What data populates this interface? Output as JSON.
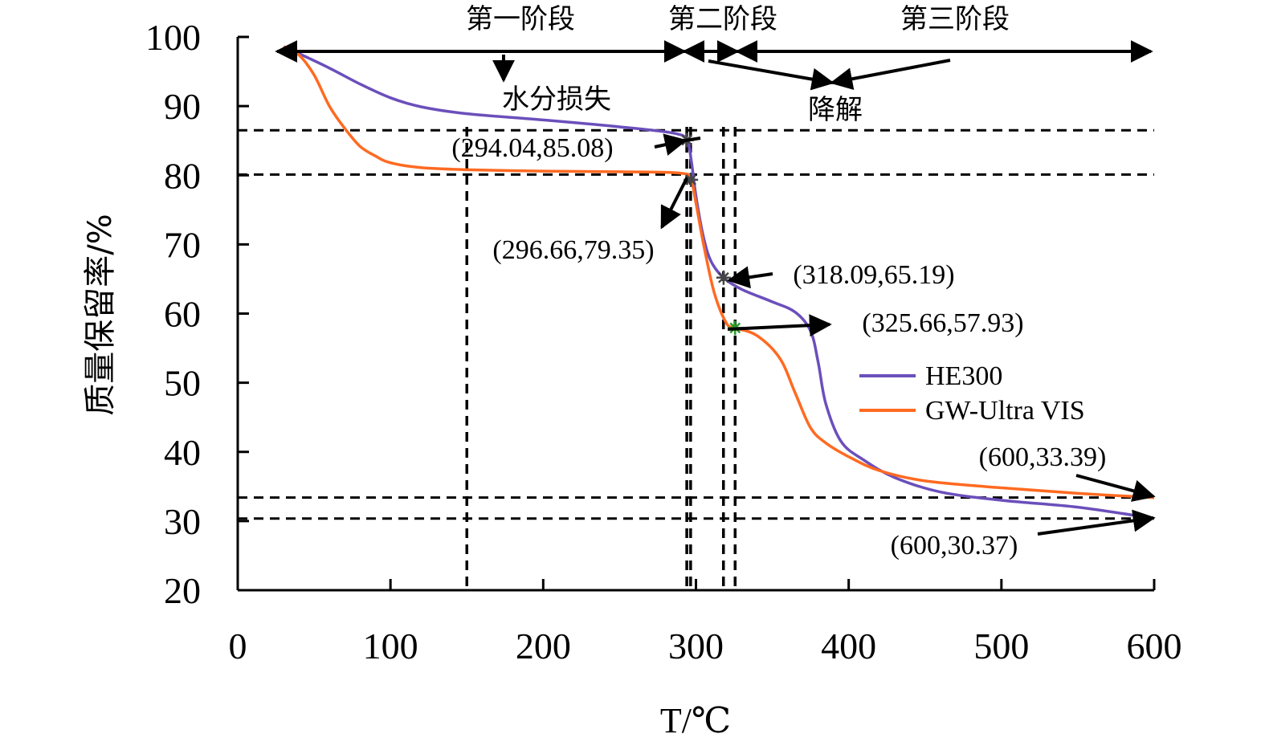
{
  "chart_data": {
    "type": "line",
    "xlabel": "T/℃",
    "ylabel": "质量保留率/%",
    "xlim": [
      0,
      600
    ],
    "ylim": [
      20,
      100
    ],
    "x_ticks": [
      0,
      100,
      200,
      300,
      400,
      500,
      600
    ],
    "y_ticks": [
      20,
      30,
      40,
      50,
      60,
      70,
      80,
      90,
      100
    ],
    "grid": false,
    "legend_position": "right-middle",
    "series": [
      {
        "name": "HE300",
        "color": "#6b4fbb",
        "points": [
          [
            30,
            98.6
          ],
          [
            40,
            97.6
          ],
          [
            60,
            95.5
          ],
          [
            80,
            93.2
          ],
          [
            100,
            91.2
          ],
          [
            120,
            89.9
          ],
          [
            150,
            88.9
          ],
          [
            200,
            88.0
          ],
          [
            250,
            87.0
          ],
          [
            285,
            86.1
          ],
          [
            294.04,
            85.08
          ],
          [
            297,
            82
          ],
          [
            300,
            77
          ],
          [
            305,
            71
          ],
          [
            310,
            67.5
          ],
          [
            318.09,
            65.19
          ],
          [
            330,
            63.5
          ],
          [
            350,
            61.7
          ],
          [
            365,
            60.2
          ],
          [
            375,
            57.5
          ],
          [
            380,
            53
          ],
          [
            385,
            47
          ],
          [
            395,
            41.5
          ],
          [
            410,
            38.8
          ],
          [
            430,
            36.3
          ],
          [
            460,
            34.2
          ],
          [
            500,
            33.0
          ],
          [
            550,
            32.0
          ],
          [
            600,
            30.37
          ]
        ]
      },
      {
        "name": "GW-Ultra VIS",
        "color": "#ff6a21",
        "points": [
          [
            30,
            98.6
          ],
          [
            40,
            97.4
          ],
          [
            50,
            94.5
          ],
          [
            60,
            90.0
          ],
          [
            70,
            86.8
          ],
          [
            80,
            84.2
          ],
          [
            90,
            82.8
          ],
          [
            100,
            81.8
          ],
          [
            120,
            81.1
          ],
          [
            150,
            80.8
          ],
          [
            200,
            80.6
          ],
          [
            250,
            80.5
          ],
          [
            290,
            80.3
          ],
          [
            296.66,
            79.35
          ],
          [
            300,
            76
          ],
          [
            305,
            70
          ],
          [
            312,
            63
          ],
          [
            320,
            58.6
          ],
          [
            325.66,
            57.93
          ],
          [
            340,
            56.8
          ],
          [
            355,
            53.5
          ],
          [
            365,
            48.5
          ],
          [
            375,
            43.5
          ],
          [
            385,
            41.3
          ],
          [
            400,
            39.3
          ],
          [
            420,
            37.3
          ],
          [
            450,
            35.8
          ],
          [
            500,
            34.8
          ],
          [
            550,
            34.0
          ],
          [
            600,
            33.39
          ]
        ]
      }
    ],
    "annotations": {
      "stage1": "第一阶段",
      "stage2": "第二阶段",
      "stage3": "第三阶段",
      "water_loss": "水分损失",
      "degradation": "降解",
      "p1": "(294.04,85.08)",
      "p2": "(296.66,79.35)",
      "p3": "(318.09,65.19)",
      "p4": "(325.66,57.93)",
      "p5": "(600,33.39)",
      "p6": "(600,30.37)"
    },
    "reference_lines": {
      "horizontal_y": [
        86.5,
        80.1,
        33.39,
        30.37
      ],
      "vertical_x": [
        150,
        294,
        296.5,
        318,
        325.66
      ]
    }
  }
}
